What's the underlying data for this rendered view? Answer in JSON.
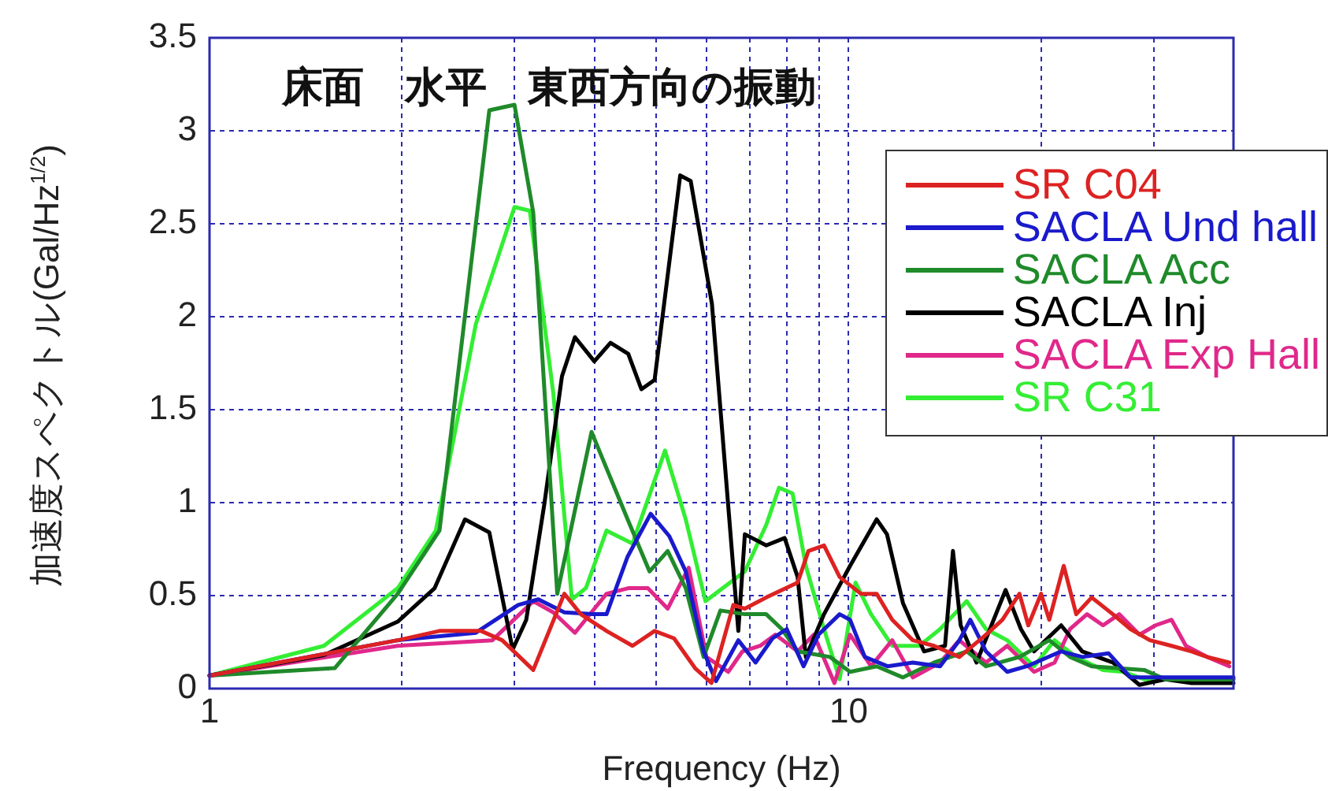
{
  "chart_data": {
    "type": "line",
    "title": "床面　水平　東西方向の振動",
    "xlabel": "Frequency (Hz)",
    "ylabel": "加速度スペクトル(Gal/Hz$^{1/2}$)",
    "log": "x",
    "xlim": [
      1,
      40
    ],
    "ylim": [
      0,
      3.5
    ],
    "xticks": [
      1,
      {
        "value": 2,
        "label": null
      },
      {
        "value": 3,
        "label": null
      },
      {
        "value": 4,
        "label": null
      },
      {
        "value": 5,
        "label": null
      },
      {
        "value": 6,
        "label": null
      },
      {
        "value": 7,
        "label": null
      },
      {
        "value": 8,
        "label": null
      },
      {
        "value": 9,
        "label": null
      },
      10,
      {
        "value": 20,
        "label": null
      },
      {
        "value": 30,
        "label": null
      }
    ],
    "yticks": [
      0,
      0.5,
      1,
      1.5,
      2,
      2.5,
      3,
      3.5
    ],
    "grid": true,
    "legend": "right",
    "marker": "none",
    "series": [
      {
        "name": "SR C04",
        "color": "#dd2222",
        "x": [
          1,
          1.97,
          2.29,
          2.66,
          2.87,
          3.21,
          3.59,
          3.81,
          4.18,
          4.59,
          4.97,
          5.33,
          5.75,
          6.1,
          6.6,
          6.88,
          7.43,
          8.32,
          8.65,
          9.15,
          9.68,
          10.45,
          11.06,
          11.7,
          12.6,
          13.6,
          14.9,
          16.4,
          17.4,
          18.5,
          19.1,
          20,
          20.6,
          21.7,
          22.7,
          24,
          25.9,
          27.6,
          29.6,
          32,
          34.4,
          36.4,
          39.4
        ],
        "values": [
          0.07,
          0.26,
          0.31,
          0.31,
          0.26,
          0.1,
          0.51,
          0.4,
          0.31,
          0.23,
          0.31,
          0.27,
          0.11,
          0.03,
          0.45,
          0.43,
          0.49,
          0.57,
          0.74,
          0.77,
          0.6,
          0.51,
          0.51,
          0.37,
          0.26,
          0.23,
          0.17,
          0.29,
          0.37,
          0.51,
          0.34,
          0.51,
          0.37,
          0.66,
          0.4,
          0.49,
          0.4,
          0.32,
          0.26,
          0.23,
          0.2,
          0.17,
          0.14
        ]
      },
      {
        "name": "SACLA Und hall",
        "color": "#1a1acc",
        "x": [
          1,
          1.97,
          2.61,
          3.04,
          3.27,
          3.59,
          3.98,
          4.18,
          4.51,
          4.9,
          5.24,
          5.56,
          5.93,
          6.2,
          6.72,
          7.15,
          7.6,
          8,
          8.5,
          8.97,
          9.68,
          10.05,
          10.6,
          11.5,
          12.6,
          13.9,
          14.9,
          15.5,
          16.4,
          17.7,
          19,
          21.5,
          23.2,
          25.5,
          27.6,
          31.3,
          40
        ],
        "values": [
          0.07,
          0.26,
          0.3,
          0.45,
          0.48,
          0.41,
          0.4,
          0.4,
          0.71,
          0.94,
          0.82,
          0.63,
          0.2,
          0.04,
          0.26,
          0.14,
          0.27,
          0.32,
          0.12,
          0.29,
          0.4,
          0.37,
          0.17,
          0.12,
          0.14,
          0.12,
          0.26,
          0.37,
          0.2,
          0.09,
          0.12,
          0.2,
          0.17,
          0.19,
          0.06,
          0.06,
          0.06
        ]
      },
      {
        "name": "SACLA Acc",
        "color": "#1f8a2a",
        "x": [
          1,
          1.57,
          1.97,
          2.29,
          2.74,
          3,
          3.21,
          3.5,
          3.96,
          4.51,
          4.88,
          5.21,
          5.56,
          5.93,
          6.3,
          6.88,
          7.43,
          7.86,
          8.32,
          9.35,
          10.05,
          11.06,
          12.16,
          13.6,
          15.3,
          16.4,
          18.5,
          20.6,
          22.2,
          24,
          29,
          31.3,
          40
        ],
        "values": [
          0.07,
          0.11,
          0.51,
          0.85,
          3.11,
          3.14,
          2.56,
          0.51,
          1.38,
          0.91,
          0.63,
          0.74,
          0.54,
          0.17,
          0.42,
          0.4,
          0.4,
          0.32,
          0.2,
          0.17,
          0.09,
          0.12,
          0.06,
          0.14,
          0.2,
          0.12,
          0.17,
          0.26,
          0.17,
          0.12,
          0.1,
          0.05,
          0.05
        ]
      },
      {
        "name": "SACLA Inj",
        "color": "#000000",
        "x": [
          1,
          1.51,
          1.97,
          2.25,
          2.51,
          2.74,
          2.98,
          3.13,
          3.34,
          3.56,
          3.73,
          4,
          4.24,
          4.52,
          4.74,
          4.97,
          5.45,
          5.66,
          6.11,
          6.72,
          6.88,
          7.43,
          7.94,
          8.32,
          8.57,
          9.15,
          10.05,
          11.06,
          11.48,
          12.16,
          13.12,
          14.15,
          14.56,
          14.97,
          15.85,
          17.6,
          18.6,
          19.5,
          21.5,
          23.2,
          25.9,
          28.5,
          31.3,
          34.4,
          40
        ],
        "values": [
          0.07,
          0.18,
          0.36,
          0.54,
          0.91,
          0.84,
          0.21,
          0.37,
          0.99,
          1.68,
          1.89,
          1.76,
          1.86,
          1.8,
          1.61,
          1.66,
          2.76,
          2.73,
          2.07,
          0.31,
          0.83,
          0.77,
          0.81,
          0.6,
          0.17,
          0.4,
          0.66,
          0.91,
          0.83,
          0.46,
          0.2,
          0.23,
          0.74,
          0.34,
          0.14,
          0.53,
          0.32,
          0.2,
          0.34,
          0.2,
          0.14,
          0.02,
          0.05,
          0.03,
          0.03
        ]
      },
      {
        "name": "SACLA Exp Hall",
        "color": "#e0288a",
        "x": [
          1,
          1.97,
          2.77,
          3.21,
          3.45,
          3.73,
          4.18,
          4.52,
          4.85,
          5.21,
          5.62,
          5.99,
          6.48,
          6.82,
          7.27,
          7.68,
          8.32,
          8.82,
          9.5,
          10.05,
          10.84,
          11.7,
          12.6,
          13.9,
          14.9,
          16.4,
          17.7,
          19.5,
          21,
          22.2,
          23.6,
          25,
          26.5,
          28.5,
          30.2,
          32,
          33.7,
          36.4,
          39.4
        ],
        "values": [
          0.07,
          0.23,
          0.26,
          0.47,
          0.41,
          0.3,
          0.51,
          0.54,
          0.54,
          0.43,
          0.65,
          0.17,
          0.09,
          0.2,
          0.23,
          0.29,
          0.2,
          0.29,
          0.03,
          0.29,
          0.12,
          0.26,
          0.06,
          0.14,
          0.26,
          0.14,
          0.23,
          0.09,
          0.14,
          0.32,
          0.4,
          0.34,
          0.4,
          0.29,
          0.34,
          0.37,
          0.23,
          0.17,
          0.12
        ]
      },
      {
        "name": "SR C31",
        "color": "#33ee33",
        "x": [
          1,
          1.51,
          1.97,
          2.26,
          2.61,
          3,
          3.17,
          3.45,
          3.69,
          3.88,
          4.18,
          4.59,
          5.16,
          5.56,
          5.97,
          6.88,
          7.43,
          7.78,
          8.17,
          8.57,
          9.15,
          9.68,
          10.25,
          10.84,
          11.7,
          12.9,
          13.9,
          15.3,
          16.4,
          17.7,
          19.5,
          21,
          22.7,
          25,
          26.9,
          29,
          40
        ],
        "values": [
          0.07,
          0.23,
          0.54,
          0.85,
          1.96,
          2.59,
          2.57,
          1.59,
          0.48,
          0.54,
          0.85,
          0.78,
          1.28,
          0.91,
          0.47,
          0.63,
          0.88,
          1.08,
          1.05,
          0.66,
          0.32,
          0.05,
          0.57,
          0.4,
          0.23,
          0.23,
          0.32,
          0.47,
          0.32,
          0.26,
          0.12,
          0.26,
          0.17,
          0.1,
          0.09,
          0.05,
          0.05
        ]
      }
    ]
  }
}
